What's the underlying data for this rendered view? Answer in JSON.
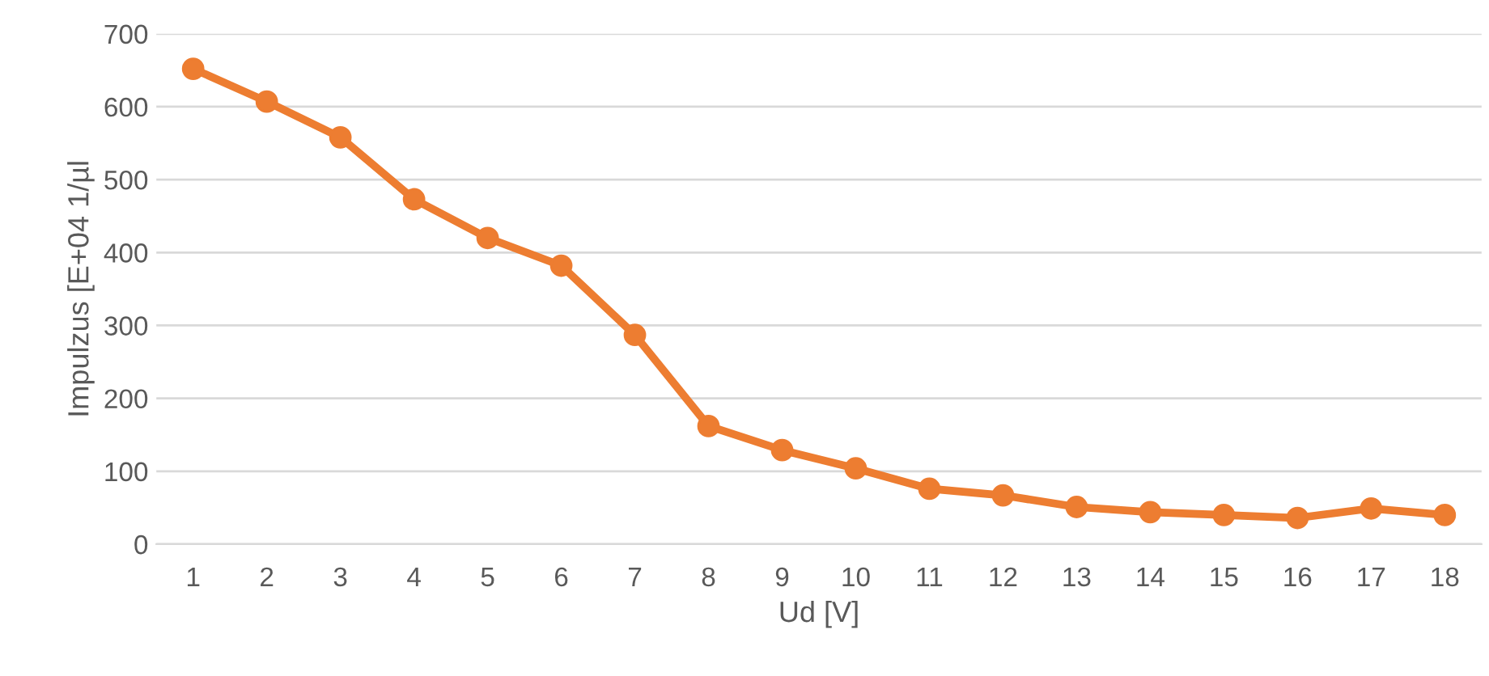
{
  "chart_data": {
    "type": "line",
    "xlabel": "Ud [V]",
    "ylabel": "Impulzus [E+04 1/µl",
    "categories": [
      "1",
      "2",
      "3",
      "4",
      "5",
      "6",
      "7",
      "8",
      "9",
      "10",
      "11",
      "12",
      "13",
      "14",
      "15",
      "16",
      "17",
      "18"
    ],
    "series": [
      {
        "color": "#ed7d31",
        "values": [
          652,
          607,
          558,
          473,
          420,
          382,
          287,
          162,
          129,
          104,
          76,
          67,
          51,
          44,
          40,
          36,
          49,
          40
        ]
      }
    ],
    "ylim": [
      0,
      700
    ],
    "yticks": [
      0,
      100,
      200,
      300,
      400,
      500,
      600,
      700
    ],
    "grid": "y",
    "marker": "circle",
    "line_style": "solid"
  }
}
